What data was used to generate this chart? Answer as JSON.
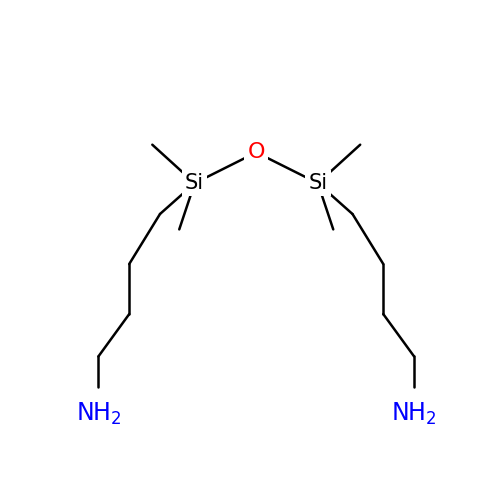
{
  "background_color": "#ffffff",
  "bond_color": "#000000",
  "si_color": "#000000",
  "o_color": "#ff0000",
  "n_color": "#0000ff",
  "line_width": 1.8,
  "font_size_si": 15,
  "font_size_o": 16,
  "font_size_nh2": 17,
  "figsize": [
    5.0,
    5.0
  ],
  "dpi": 100,
  "xlim": [
    0,
    10
  ],
  "ylim": [
    0,
    10
  ],
  "ox": 5.0,
  "oy": 7.6,
  "si1x": 3.4,
  "si1y": 6.8,
  "si2x": 6.6,
  "si2y": 6.8,
  "me1_up_x": 2.3,
  "me1_up_y": 7.8,
  "me1_dn_x": 3.0,
  "me1_dn_y": 5.6,
  "me2_up_x": 7.7,
  "me2_up_y": 7.8,
  "me2_dn_x": 7.0,
  "me2_dn_y": 5.6,
  "c1lx": 2.5,
  "c1ly": 6.0,
  "c2lx": 1.7,
  "c2ly": 4.7,
  "c3lx": 1.7,
  "c3ly": 3.4,
  "c4lx": 0.9,
  "c4ly": 2.3,
  "nh2lx": 0.9,
  "nh2ly": 1.5,
  "c1rx": 7.5,
  "c1ry": 6.0,
  "c2rx": 8.3,
  "c2ry": 4.7,
  "c3rx": 8.3,
  "c3ry": 3.4,
  "c4rx": 9.1,
  "c4ry": 2.3,
  "nh2rx": 9.1,
  "nh2ry": 1.5
}
